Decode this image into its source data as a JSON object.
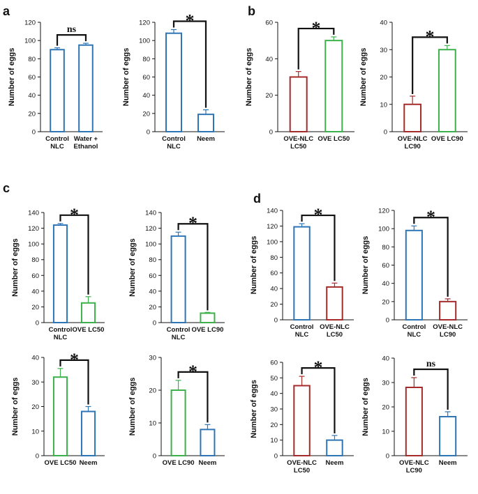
{
  "panel_labels": [
    "a",
    "b",
    "c",
    "d"
  ],
  "colors": {
    "blue": "#2e75b6",
    "red": "#a52a2a",
    "green": "#3cb04a",
    "axis": "#111111",
    "bracket": "#111111"
  },
  "chart_data": [
    {
      "type": "bar",
      "panel": "a",
      "ylabel": "Number of eggs",
      "ylim": [
        0,
        120
      ],
      "yticks": [
        0,
        20,
        40,
        60,
        80,
        100,
        120
      ],
      "categories": [
        [
          "Control",
          "NLC"
        ],
        [
          "Water +",
          "Ethanol"
        ]
      ],
      "values": [
        90,
        95
      ],
      "errors": [
        2,
        2
      ],
      "colors": [
        "blue",
        "blue"
      ],
      "significance": "ns"
    },
    {
      "type": "bar",
      "panel": "a",
      "ylabel": "Number of eggs",
      "ylim": [
        0,
        120
      ],
      "yticks": [
        0,
        20,
        40,
        60,
        80,
        100,
        120
      ],
      "categories": [
        [
          "Control",
          "NLC"
        ],
        [
          "Neem"
        ]
      ],
      "values": [
        108,
        19
      ],
      "errors": [
        4,
        5
      ],
      "colors": [
        "blue",
        "blue"
      ],
      "significance": "*"
    },
    {
      "type": "bar",
      "panel": "b",
      "ylabel": "Number of eggs",
      "ylim": [
        0,
        60
      ],
      "yticks": [
        0,
        20,
        40,
        60
      ],
      "categories": [
        [
          "OVE-NLC",
          "LC50"
        ],
        [
          "OVE LC50"
        ]
      ],
      "values": [
        30,
        50
      ],
      "errors": [
        3,
        2
      ],
      "colors": [
        "red",
        "green"
      ],
      "significance": "*"
    },
    {
      "type": "bar",
      "panel": "b",
      "ylabel": "Number of eggs",
      "ylim": [
        0,
        40
      ],
      "yticks": [
        0,
        10,
        20,
        30,
        40
      ],
      "categories": [
        [
          "OVE-NLC",
          "LC90"
        ],
        [
          "OVE LC90"
        ]
      ],
      "values": [
        10,
        30
      ],
      "errors": [
        3,
        1.5
      ],
      "colors": [
        "red",
        "green"
      ],
      "significance": "*"
    },
    {
      "type": "bar",
      "panel": "c",
      "ylabel": "Number of eggs",
      "ylim": [
        0,
        140
      ],
      "yticks": [
        0,
        20,
        40,
        60,
        80,
        100,
        120,
        140
      ],
      "categories": [
        [
          "Control",
          "NLC"
        ],
        [
          "OVE LC50"
        ]
      ],
      "values": [
        124,
        25
      ],
      "errors": [
        2,
        8
      ],
      "colors": [
        "blue",
        "green"
      ],
      "significance": "*"
    },
    {
      "type": "bar",
      "panel": "c",
      "ylabel": "Number of eggs",
      "ylim": [
        0,
        140
      ],
      "yticks": [
        0,
        20,
        40,
        60,
        80,
        100,
        120,
        140
      ],
      "categories": [
        [
          "Control",
          "NLC"
        ],
        [
          "OVE LC90"
        ]
      ],
      "values": [
        110,
        12
      ],
      "errors": [
        5,
        1
      ],
      "colors": [
        "blue",
        "green"
      ],
      "significance": "*"
    },
    {
      "type": "bar",
      "panel": "d",
      "ylabel": "Number of eggs",
      "ylim": [
        0,
        140
      ],
      "yticks": [
        0,
        20,
        40,
        60,
        80,
        100,
        120,
        140
      ],
      "categories": [
        [
          "Control",
          "NLC"
        ],
        [
          "OVE-NLC",
          "LC50"
        ]
      ],
      "values": [
        119,
        42
      ],
      "errors": [
        4,
        5
      ],
      "colors": [
        "blue",
        "red"
      ],
      "significance": "*"
    },
    {
      "type": "bar",
      "panel": "d",
      "ylabel": "Number of eggs",
      "ylim": [
        0,
        120
      ],
      "yticks": [
        0,
        20,
        40,
        60,
        80,
        100,
        120
      ],
      "categories": [
        [
          "Control",
          "NLC"
        ],
        [
          "OVE-NLC",
          "LC90"
        ]
      ],
      "values": [
        98,
        20
      ],
      "errors": [
        5,
        3
      ],
      "colors": [
        "blue",
        "red"
      ],
      "significance": "*"
    },
    {
      "type": "bar",
      "panel": "c",
      "ylabel": "Number of eggs",
      "ylim": [
        0,
        40
      ],
      "yticks": [
        0,
        10,
        20,
        30,
        40
      ],
      "categories": [
        [
          "OVE LC50"
        ],
        [
          "Neem"
        ]
      ],
      "values": [
        32,
        18
      ],
      "errors": [
        3.5,
        2
      ],
      "colors": [
        "green",
        "blue"
      ],
      "significance": "*"
    },
    {
      "type": "bar",
      "panel": "c",
      "ylabel": "Number of eggs",
      "ylim": [
        0,
        30
      ],
      "yticks": [
        0,
        10,
        20,
        30
      ],
      "categories": [
        [
          "OVE LC90"
        ],
        [
          "Neem"
        ]
      ],
      "values": [
        20,
        8
      ],
      "errors": [
        3,
        1.5
      ],
      "colors": [
        "green",
        "blue"
      ],
      "significance": "*"
    },
    {
      "type": "bar",
      "panel": "d",
      "ylabel": "Number of eggs",
      "ylim": [
        0,
        60
      ],
      "yticks": [
        0,
        10,
        20,
        30,
        40,
        50,
        60
      ],
      "categories": [
        [
          "OVE-NLC",
          "LC50"
        ],
        [
          "Neem"
        ]
      ],
      "values": [
        45,
        10
      ],
      "errors": [
        6,
        3
      ],
      "colors": [
        "red",
        "blue"
      ],
      "significance": "*"
    },
    {
      "type": "bar",
      "panel": "d",
      "ylabel": "Number of eggs",
      "ylim": [
        0,
        40
      ],
      "yticks": [
        0,
        10,
        20,
        30,
        40
      ],
      "categories": [
        [
          "OVE-NLC",
          "LC90"
        ],
        [
          "Neem"
        ]
      ],
      "values": [
        28,
        16
      ],
      "errors": [
        4,
        2
      ],
      "colors": [
        "red",
        "blue"
      ],
      "significance": "ns"
    }
  ]
}
